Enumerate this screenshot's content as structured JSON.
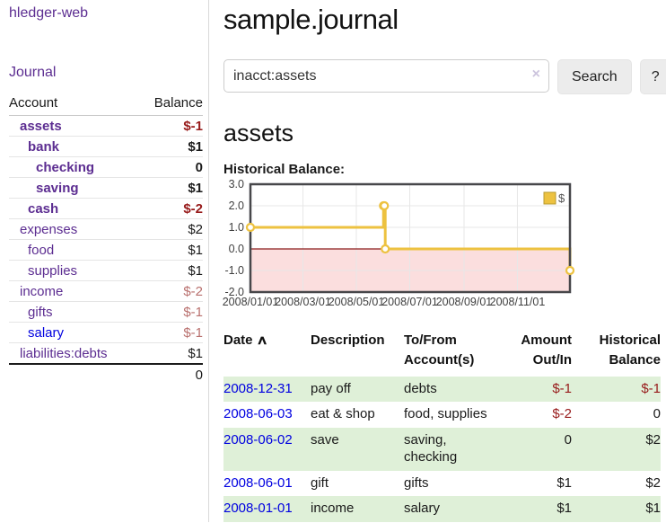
{
  "colors": {
    "link_purple": "#5c2d91",
    "link_blue": "#0000e0",
    "negative_strong": "#971a1a",
    "negative_soft": "#b9706e",
    "row_green": "#dff0d8",
    "chart_gold": "#edc240",
    "chart_negative_fill": "#fbdede",
    "chart_zero_line": "#8b1a1a",
    "chart_border": "#47474a",
    "chart_grid": "#e7e7e7"
  },
  "sidebar": {
    "brand": "hledger-web",
    "journal_label": "Journal",
    "accounts": {
      "col_account": "Account",
      "col_balance": "Balance",
      "rows": [
        {
          "name": "assets",
          "depth": 1,
          "bold": true,
          "balance": "$-1",
          "neg": "strong"
        },
        {
          "name": "bank",
          "depth": 2,
          "bold": true,
          "balance": "$1",
          "neg": "none"
        },
        {
          "name": "checking",
          "depth": 3,
          "bold": true,
          "balance": "0",
          "neg": "none"
        },
        {
          "name": "saving",
          "depth": 3,
          "bold": true,
          "balance": "$1",
          "neg": "none"
        },
        {
          "name": "cash",
          "depth": 2,
          "bold": true,
          "balance": "$-2",
          "neg": "strong"
        },
        {
          "name": "expenses",
          "depth": 1,
          "bold": false,
          "balance": "$2",
          "neg": "none"
        },
        {
          "name": "food",
          "depth": 2,
          "bold": false,
          "balance": "$1",
          "neg": "none"
        },
        {
          "name": "supplies",
          "depth": 2,
          "bold": false,
          "balance": "$1",
          "neg": "none"
        },
        {
          "name": "income",
          "depth": 1,
          "bold": false,
          "balance": "$-2",
          "neg": "soft"
        },
        {
          "name": "gifts",
          "depth": 2,
          "bold": false,
          "balance": "$-1",
          "neg": "soft"
        },
        {
          "name": "salary",
          "depth": 2,
          "bold": false,
          "balance": "$-1",
          "neg": "soft",
          "unvisited": true
        },
        {
          "name": "liabilities:debts",
          "depth": 1,
          "bold": false,
          "balance": "$1",
          "neg": "none"
        }
      ],
      "total": "0"
    }
  },
  "main": {
    "title": "sample.journal",
    "search": {
      "value": "inacct:assets",
      "placeholder": "",
      "clear_icon": "×",
      "button_label": "Search",
      "help_label": "?"
    },
    "account_heading": "assets",
    "chart_label": "Historical Balance:",
    "register": {
      "headers": {
        "date": "Date",
        "sort_icon": "∧",
        "description": "Description",
        "accounts": "To/From Account(s)",
        "amount": "Amount Out/In",
        "balance": "Historical Balance"
      },
      "rows": [
        {
          "date": "2008-12-31",
          "description": "pay off",
          "accounts": "debts",
          "amount": "$-1",
          "balance": "$-1",
          "shaded": true
        },
        {
          "date": "2008-06-03",
          "description": "eat & shop",
          "accounts": "food, supplies",
          "amount": "$-2",
          "balance": "0",
          "shaded": false
        },
        {
          "date": "2008-06-02",
          "description": "save",
          "accounts": "saving, checking",
          "amount": "0",
          "balance": "$2",
          "shaded": true
        },
        {
          "date": "2008-06-01",
          "description": "gift",
          "accounts": "gifts",
          "amount": "$1",
          "balance": "$2",
          "shaded": false
        },
        {
          "date": "2008-01-01",
          "description": "income",
          "accounts": "salary",
          "amount": "$1",
          "balance": "$1",
          "shaded": true
        }
      ]
    }
  },
  "chart_data": {
    "type": "line",
    "step": true,
    "title": "Historical Balance",
    "series": [
      {
        "name": "$",
        "color": "#edc240",
        "points": [
          [
            "2008-01-01",
            1
          ],
          [
            "2008-06-01",
            2
          ],
          [
            "2008-06-02",
            2
          ],
          [
            "2008-06-03",
            0
          ],
          [
            "2008-12-31",
            -1
          ]
        ]
      }
    ],
    "x_range": [
      "2008-01-01",
      "2008-12-31"
    ],
    "x_ticks": [
      "2008/01/01",
      "2008/03/01",
      "2008/05/01",
      "2008/07/01",
      "2008/09/01",
      "2008/11/01"
    ],
    "y_ticks": [
      "3.0",
      "2.0",
      "1.0",
      "0.0",
      "-1.0",
      "-2.0"
    ],
    "ylim": [
      -2,
      3
    ],
    "grid": true,
    "legend": {
      "label": "$",
      "position": "top-right"
    }
  }
}
